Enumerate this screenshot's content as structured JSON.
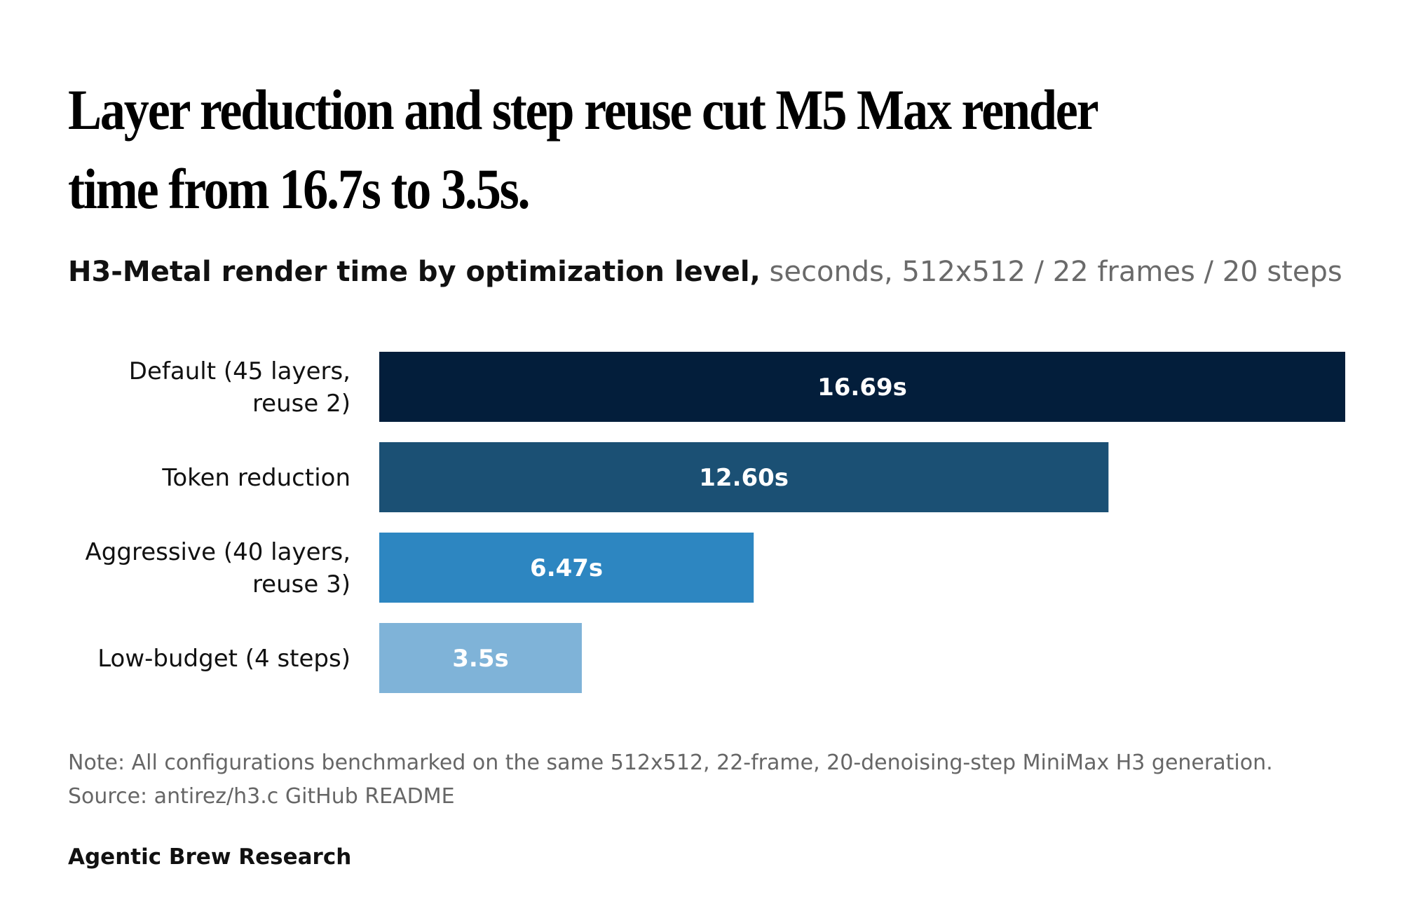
{
  "header": {
    "title": "Layer reduction and step reuse cut M5 Max render time from 16.7s to 3.5s.",
    "subtitle_strong": "H3-Metal render time by optimization level,",
    "subtitle_light": " seconds, 512x512 / 22 frames / 20 steps"
  },
  "chart_data": {
    "type": "bar",
    "orientation": "horizontal",
    "categories": [
      [
        "Default (45 layers,",
        "reuse 2)"
      ],
      [
        "Token reduction"
      ],
      [
        "Aggressive (40 layers,",
        "reuse 3)"
      ],
      [
        "Low-budget (4 steps)"
      ]
    ],
    "values": [
      16.69,
      12.6,
      6.47,
      3.5
    ],
    "value_labels": [
      "16.69s",
      "12.60s",
      "6.47s",
      "3.5s"
    ],
    "colors": [
      "#031e3b",
      "#1b5074",
      "#2d86c1",
      "#7fb3d8"
    ],
    "label_colors": [
      "#ffffff",
      "#ffffff",
      "#ffffff",
      "#ffffff"
    ],
    "xlim": [
      0,
      16.69
    ],
    "grid": false
  },
  "footer": {
    "note": "Note: All configurations benchmarked on the same 512x512, 22-frame, 20-denoising-step MiniMax H3 generation.",
    "source": "Source: antirez/h3.c GitHub README",
    "brand": "Agentic Brew Research"
  }
}
